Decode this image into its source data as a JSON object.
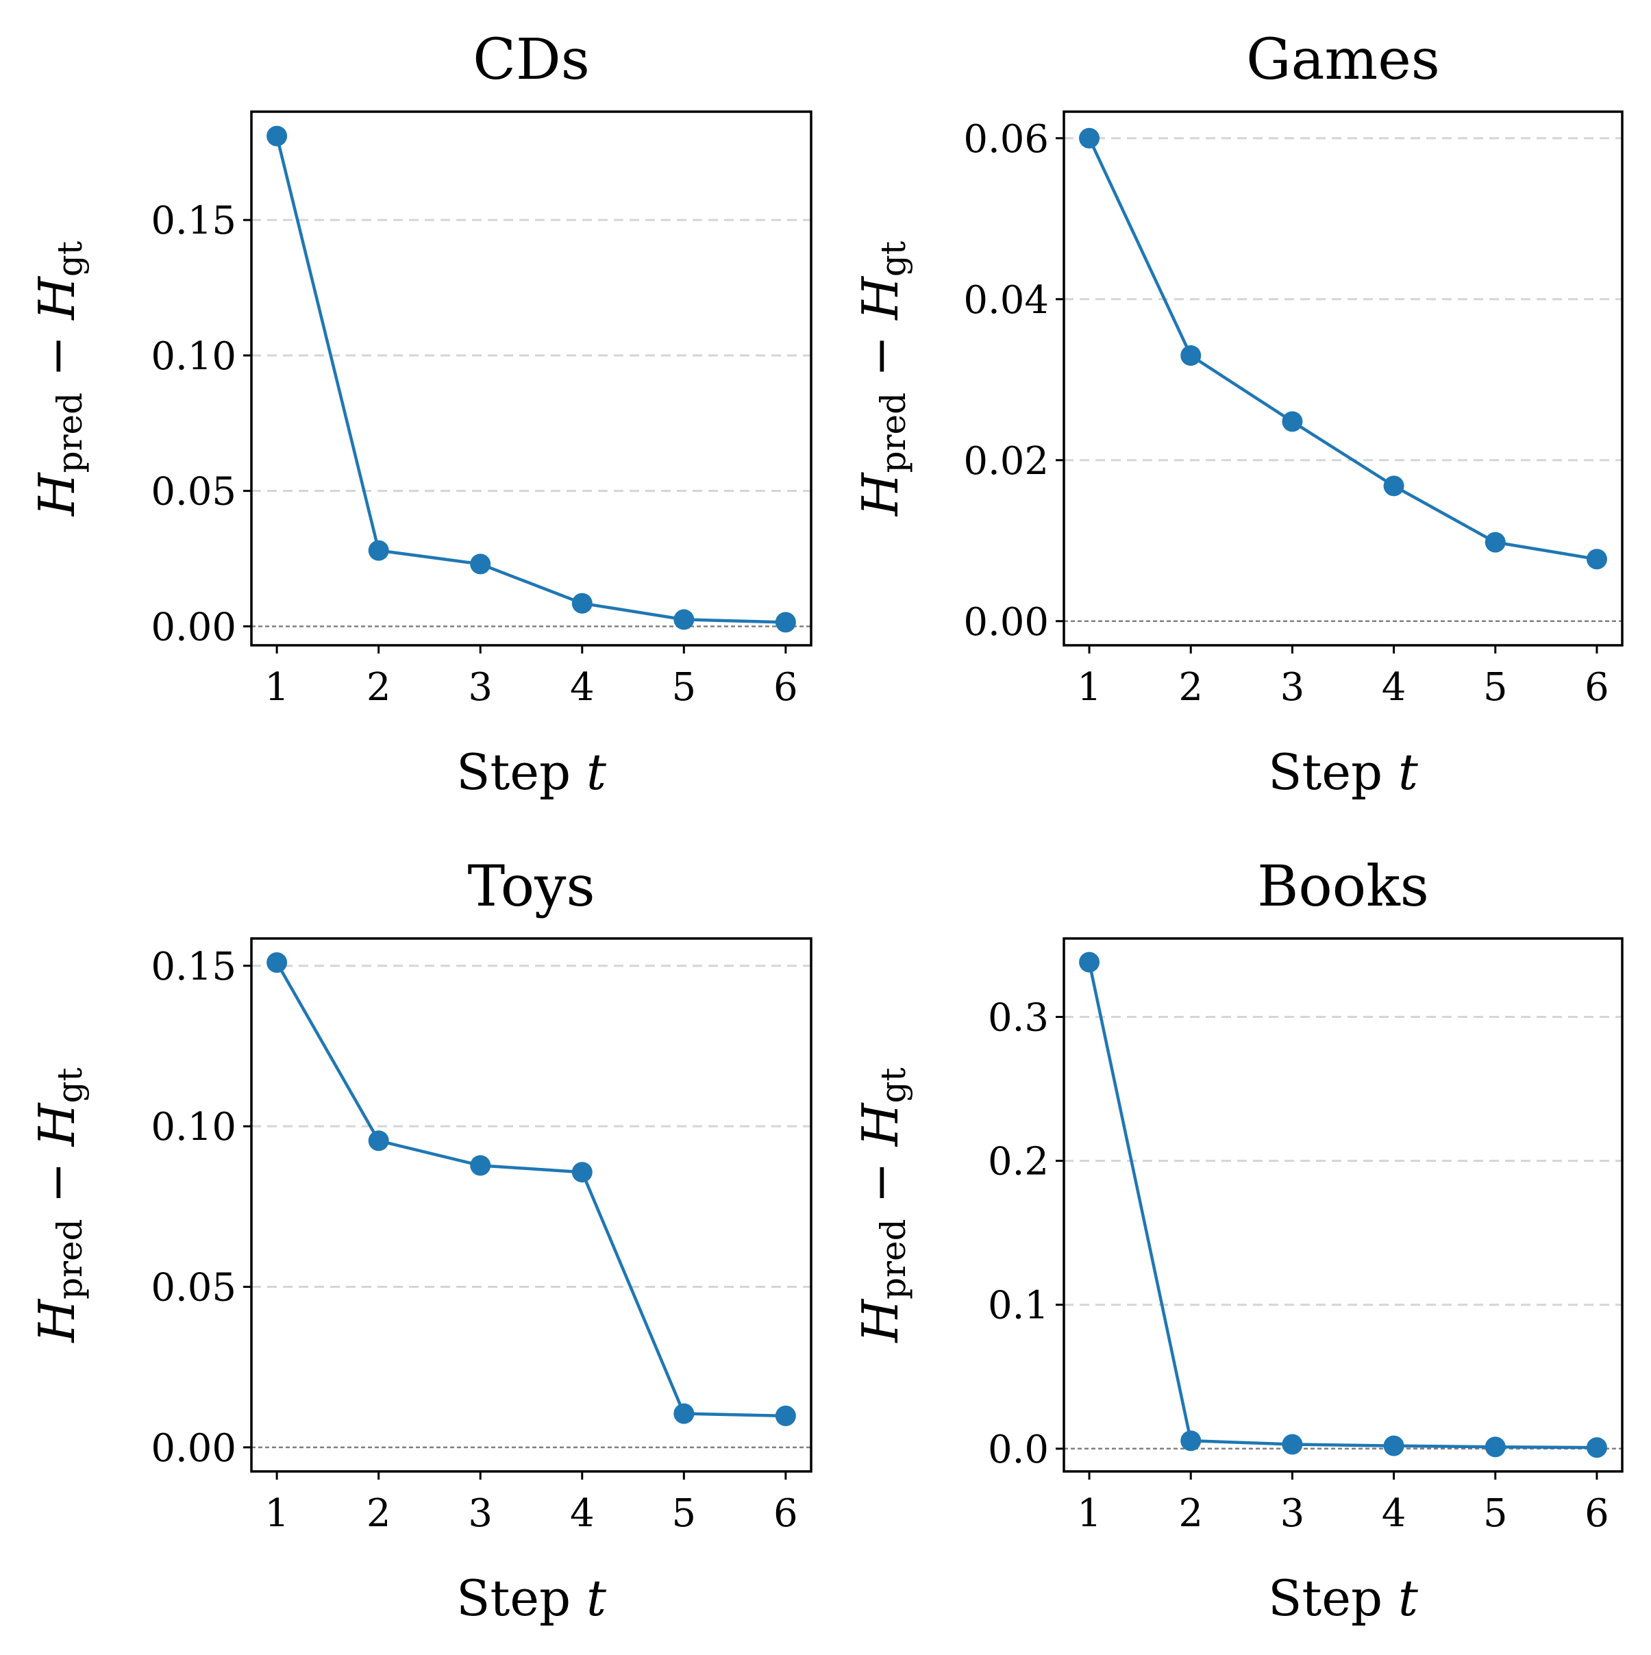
{
  "colors": {
    "series": "#1f77b4",
    "grid": "#d5d5d5",
    "zero_line": "#808080"
  },
  "chart_data": [
    {
      "type": "line",
      "title": "CDs",
      "xlabel": {
        "main": "Step ",
        "var": "t"
      },
      "ylabel": {
        "h1": "H",
        "sub1": "pred",
        "op": " − ",
        "h2": "H",
        "sub2": "gt"
      },
      "x": [
        1,
        2,
        3,
        4,
        5,
        6
      ],
      "values": [
        0.181,
        0.028,
        0.023,
        0.0085,
        0.0025,
        0.0015
      ],
      "xlim": [
        0.75,
        6.25
      ],
      "ylim": [
        -0.007,
        0.19
      ],
      "yticks": [
        0.0,
        0.05,
        0.1,
        0.15
      ],
      "ytick_labels": [
        "0.00",
        "0.05",
        "0.10",
        "0.15"
      ],
      "grid": true
    },
    {
      "type": "line",
      "title": "Games",
      "xlabel": {
        "main": "Step ",
        "var": "t"
      },
      "ylabel": {
        "h1": "H",
        "sub1": "pred",
        "op": " − ",
        "h2": "H",
        "sub2": "gt"
      },
      "x": [
        1,
        2,
        3,
        4,
        5,
        6
      ],
      "values": [
        0.06,
        0.033,
        0.0248,
        0.0168,
        0.0098,
        0.0077
      ],
      "xlim": [
        0.75,
        6.25
      ],
      "ylim": [
        -0.003,
        0.0633
      ],
      "yticks": [
        0.0,
        0.02,
        0.04,
        0.06
      ],
      "ytick_labels": [
        "0.00",
        "0.02",
        "0.04",
        "0.06"
      ],
      "grid": true
    },
    {
      "type": "line",
      "title": "Toys",
      "xlabel": {
        "main": "Step ",
        "var": "t"
      },
      "ylabel": {
        "h1": "H",
        "sub1": "pred",
        "op": " − ",
        "h2": "H",
        "sub2": "gt"
      },
      "x": [
        1,
        2,
        3,
        4,
        5,
        6
      ],
      "values": [
        0.151,
        0.0955,
        0.0878,
        0.0857,
        0.0105,
        0.0098
      ],
      "xlim": [
        0.75,
        6.25
      ],
      "ylim": [
        -0.0075,
        0.1585
      ],
      "yticks": [
        0.0,
        0.05,
        0.1,
        0.15
      ],
      "ytick_labels": [
        "0.00",
        "0.05",
        "0.10",
        "0.15"
      ],
      "grid": true
    },
    {
      "type": "line",
      "title": "Books",
      "xlabel": {
        "main": "Step ",
        "var": "t"
      },
      "ylabel": {
        "h1": "H",
        "sub1": "pred",
        "op": " − ",
        "h2": "H",
        "sub2": "gt"
      },
      "x": [
        1,
        2,
        3,
        4,
        5,
        6
      ],
      "values": [
        0.338,
        0.0055,
        0.003,
        0.002,
        0.0012,
        0.0008
      ],
      "xlim": [
        0.75,
        6.25
      ],
      "ylim": [
        -0.0158,
        0.3545
      ],
      "yticks": [
        0.0,
        0.1,
        0.2,
        0.3
      ],
      "ytick_labels": [
        "0.0",
        "0.1",
        "0.2",
        "0.3"
      ],
      "grid": true
    }
  ]
}
